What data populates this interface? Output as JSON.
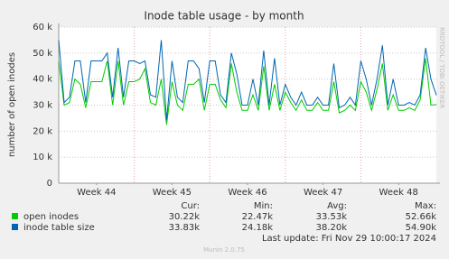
{
  "chart_data": {
    "type": "line",
    "title": "Inode table usage - by month",
    "y_label": "number of open inodes",
    "watermark": "RRDTOOL / TOBI OETIKER",
    "x": [
      0,
      0.5,
      1,
      1.5,
      2,
      2.5,
      3,
      3.5,
      4,
      4.5,
      5,
      5.5,
      6,
      6.5,
      7,
      7.5,
      8,
      8.5,
      9,
      9.5,
      10,
      10.5,
      11,
      11.5,
      12,
      12.5,
      13,
      13.5,
      14,
      14.5,
      15,
      15.5,
      16,
      16.5,
      17,
      17.5,
      18,
      18.5,
      19,
      19.5,
      20,
      20.5,
      21,
      21.5,
      22,
      22.5,
      23,
      23.5,
      24,
      24.5,
      25,
      25.5,
      26,
      26.5,
      27,
      27.5,
      28,
      28.5,
      29,
      29.5,
      30,
      30.5,
      31,
      31.5,
      32,
      32.5,
      33,
      33.5,
      34,
      34.5,
      35
    ],
    "xlim": [
      0,
      35
    ],
    "xticks": [
      {
        "value": 3.5,
        "label": "Week 44"
      },
      {
        "value": 10.5,
        "label": "Week 45"
      },
      {
        "value": 17.5,
        "label": "Week 46"
      },
      {
        "value": 24.5,
        "label": "Week 47"
      },
      {
        "value": 31.5,
        "label": "Week 48"
      }
    ],
    "ylim": [
      0,
      60000
    ],
    "yticks": [
      0,
      {
        "value": 10000,
        "label": "10 k"
      },
      {
        "value": 20000,
        "label": "20 k"
      },
      {
        "value": 30000,
        "label": "30 k"
      },
      {
        "value": 40000,
        "label": "40 k"
      },
      {
        "value": 50000,
        "label": "50 k"
      },
      {
        "value": 60000,
        "label": "60 k"
      }
    ],
    "grid": true,
    "series": [
      {
        "name": "open inodes",
        "color": "#00cc00",
        "values": [
          47000,
          30000,
          31000,
          40000,
          38000,
          29000,
          39000,
          39000,
          39000,
          47000,
          30000,
          47000,
          30000,
          39000,
          39000,
          40000,
          44000,
          31000,
          30000,
          40000,
          22470,
          39000,
          30000,
          28000,
          38000,
          38000,
          40000,
          28000,
          38000,
          38000,
          32000,
          29000,
          46000,
          35000,
          28000,
          28000,
          34000,
          28000,
          45000,
          28000,
          38000,
          28000,
          35000,
          31000,
          28000,
          32000,
          28000,
          28000,
          31000,
          28000,
          28000,
          39000,
          27000,
          28000,
          30000,
          28000,
          39000,
          35000,
          28000,
          36000,
          46000,
          28000,
          34000,
          28000,
          28000,
          29000,
          28000,
          32000,
          48000,
          30000,
          30220
        ]
      },
      {
        "name": "inode table size",
        "color": "#0066b3",
        "values": [
          55000,
          31000,
          33000,
          47000,
          47000,
          31000,
          47000,
          47000,
          47000,
          50000,
          33000,
          52000,
          33000,
          47000,
          47000,
          46000,
          47000,
          34000,
          33000,
          55000,
          24180,
          47000,
          33000,
          31000,
          47000,
          47000,
          44000,
          31000,
          47000,
          47000,
          34000,
          31000,
          50000,
          42000,
          30000,
          30000,
          40000,
          30000,
          51000,
          30000,
          48000,
          30000,
          38000,
          33000,
          30000,
          35000,
          30000,
          30000,
          33000,
          30000,
          30000,
          46000,
          29000,
          30000,
          33000,
          30000,
          47000,
          40000,
          30000,
          40000,
          53000,
          30000,
          40000,
          30000,
          30000,
          31000,
          30000,
          34000,
          52000,
          40000,
          33830
        ]
      }
    ],
    "stats": {
      "headers": [
        "Cur:",
        "Min:",
        "Avg:",
        "Max:"
      ],
      "rows": [
        [
          "30.22k",
          "22.47k",
          "33.53k",
          "52.66k"
        ],
        [
          "33.83k",
          "24.18k",
          "38.20k",
          "54.90k"
        ]
      ]
    },
    "last_update": "Last update: Fri Nov 29 10:00:17 2024",
    "footer": "Munin 2.0.75"
  }
}
